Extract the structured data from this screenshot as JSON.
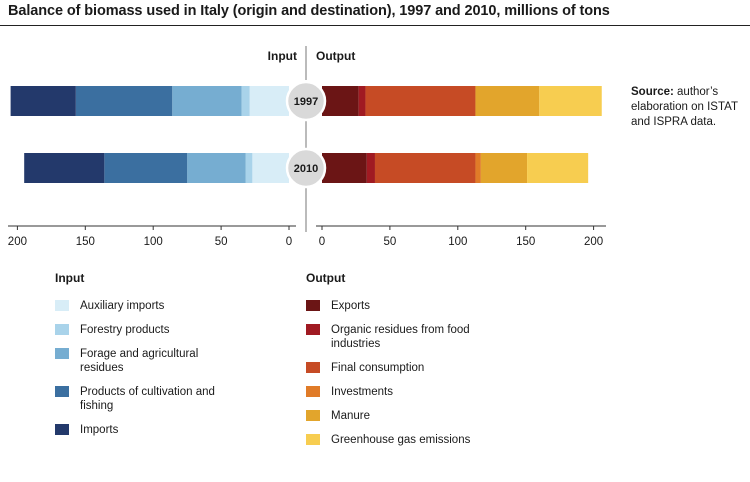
{
  "title": "Balance of biomass used in Italy (origin and destination), 1997 and 2010, millions of tons",
  "source": {
    "label": "Source:",
    "text": "author’s elaboration on ISTAT and ISPRA data."
  },
  "chart_data": {
    "type": "bar",
    "orientation": "horizontal-stacked-butterfly",
    "categories": [
      "1997",
      "2010"
    ],
    "left_header": "Input",
    "right_header": "Output",
    "left_ticks": [
      200,
      150,
      100,
      50,
      0
    ],
    "right_ticks": [
      0,
      50,
      100,
      150,
      200
    ],
    "xlim_left": [
      0,
      210
    ],
    "xlim_right": [
      0,
      210
    ],
    "input": {
      "legend_title": "Input",
      "series": [
        {
          "name": "Auxiliary imports",
          "color": "#d8edf7",
          "values": [
            29,
            27
          ]
        },
        {
          "name": "Forestry products",
          "color": "#a9d3ea",
          "values": [
            6,
            5
          ]
        },
        {
          "name": "Forage and agricultural residues",
          "color": "#76add1",
          "values": [
            51,
            43
          ]
        },
        {
          "name": "Products of cultivation and fishing",
          "color": "#3b6fa0",
          "values": [
            71,
            61
          ]
        },
        {
          "name": "Imports",
          "color": "#23396b",
          "values": [
            48,
            59
          ]
        }
      ]
    },
    "output": {
      "legend_title": "Output",
      "series": [
        {
          "name": "Exports",
          "color": "#6b1515",
          "values": [
            27,
            33
          ]
        },
        {
          "name": "Organic residues from food industries",
          "color": "#a01a22",
          "values": [
            5,
            6
          ]
        },
        {
          "name": "Final consumption",
          "color": "#c64b25",
          "values": [
            81,
            74
          ]
        },
        {
          "name": "Investments",
          "color": "#e07b28",
          "values": [
            0,
            4
          ]
        },
        {
          "name": "Manure",
          "color": "#e2a52c",
          "values": [
            47,
            34
          ]
        },
        {
          "name": "Greenhouse gas emissions",
          "color": "#f7cd50",
          "values": [
            46,
            45
          ]
        }
      ]
    }
  }
}
